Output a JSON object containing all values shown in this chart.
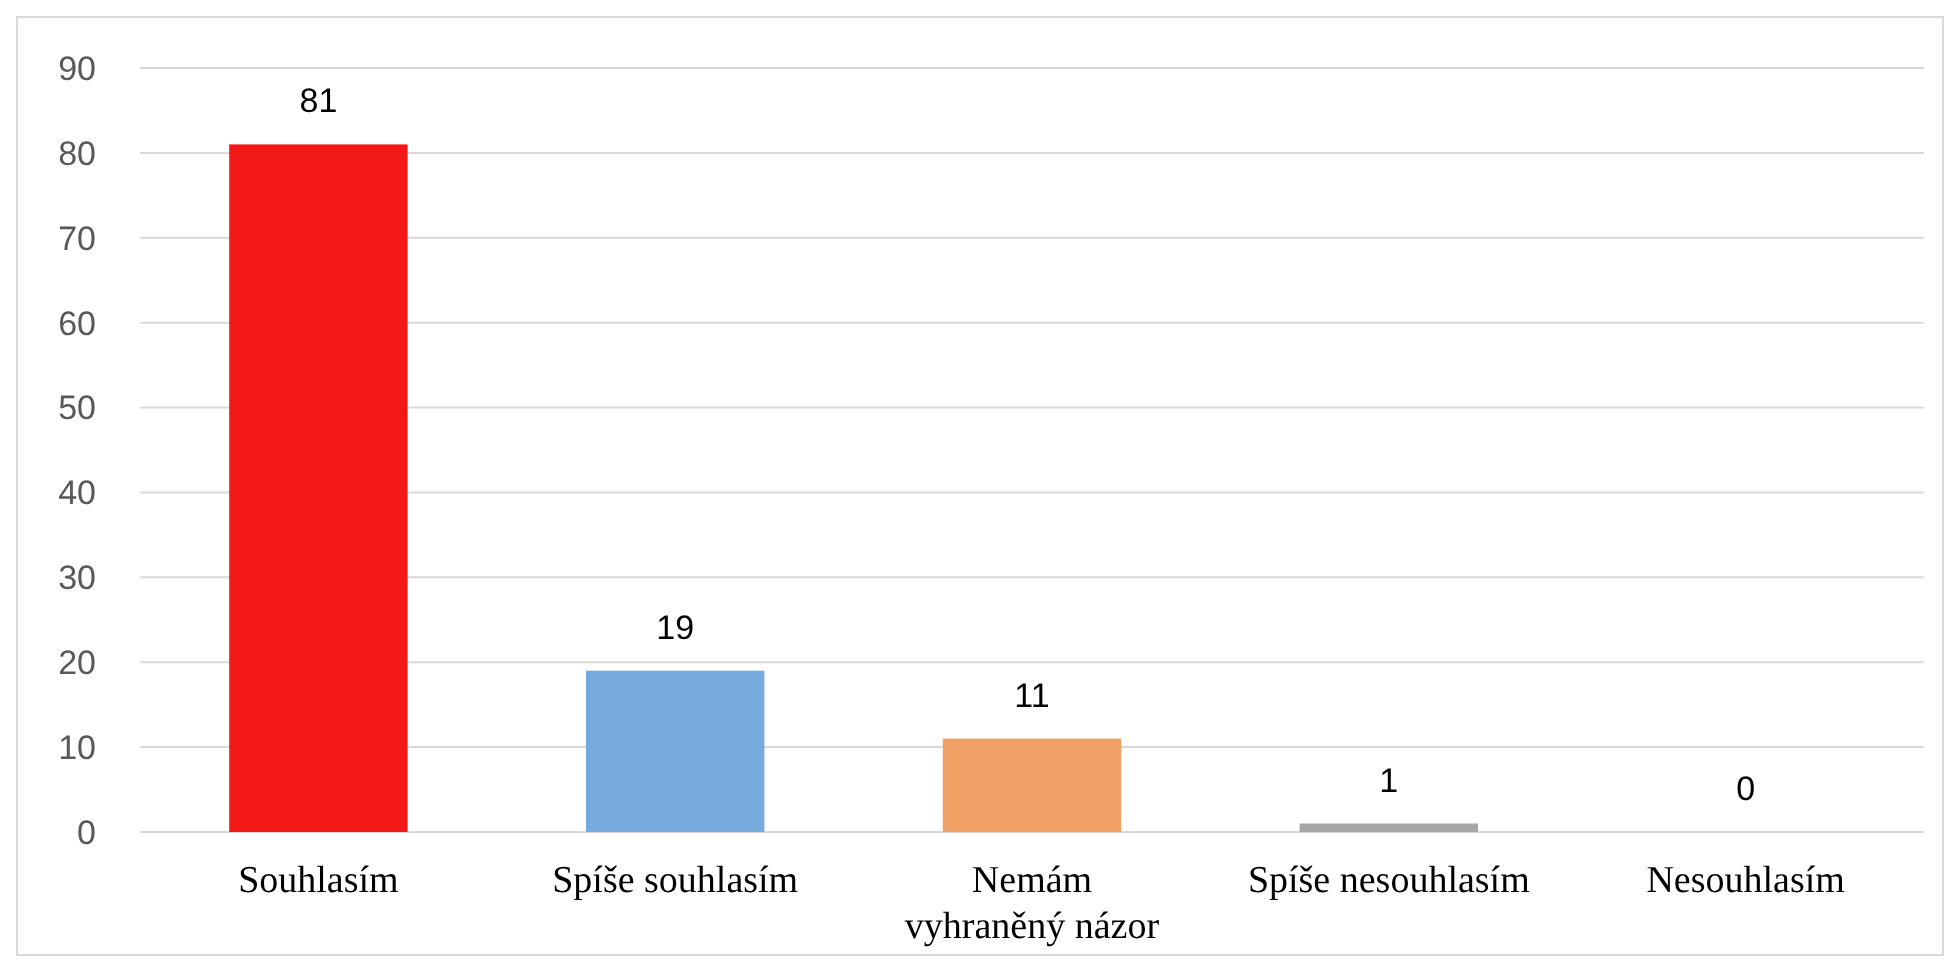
{
  "chart_data": {
    "type": "bar",
    "categories": [
      "Souhlasím",
      "Spíše souhlasím",
      "Nemám vyhraněný názor",
      "Spíše nesouhlasím",
      "Nesouhlasím"
    ],
    "values": [
      81,
      19,
      11,
      1,
      0
    ],
    "colors": [
      "#f21818",
      "#76a9de",
      "#f0a064",
      "#a6a6a6",
      "#a6a6a6"
    ],
    "ylim": [
      0,
      90
    ],
    "yticks": [
      0,
      10,
      20,
      30,
      40,
      50,
      60,
      70,
      80,
      90
    ],
    "grid": "y",
    "data_labels": true
  }
}
